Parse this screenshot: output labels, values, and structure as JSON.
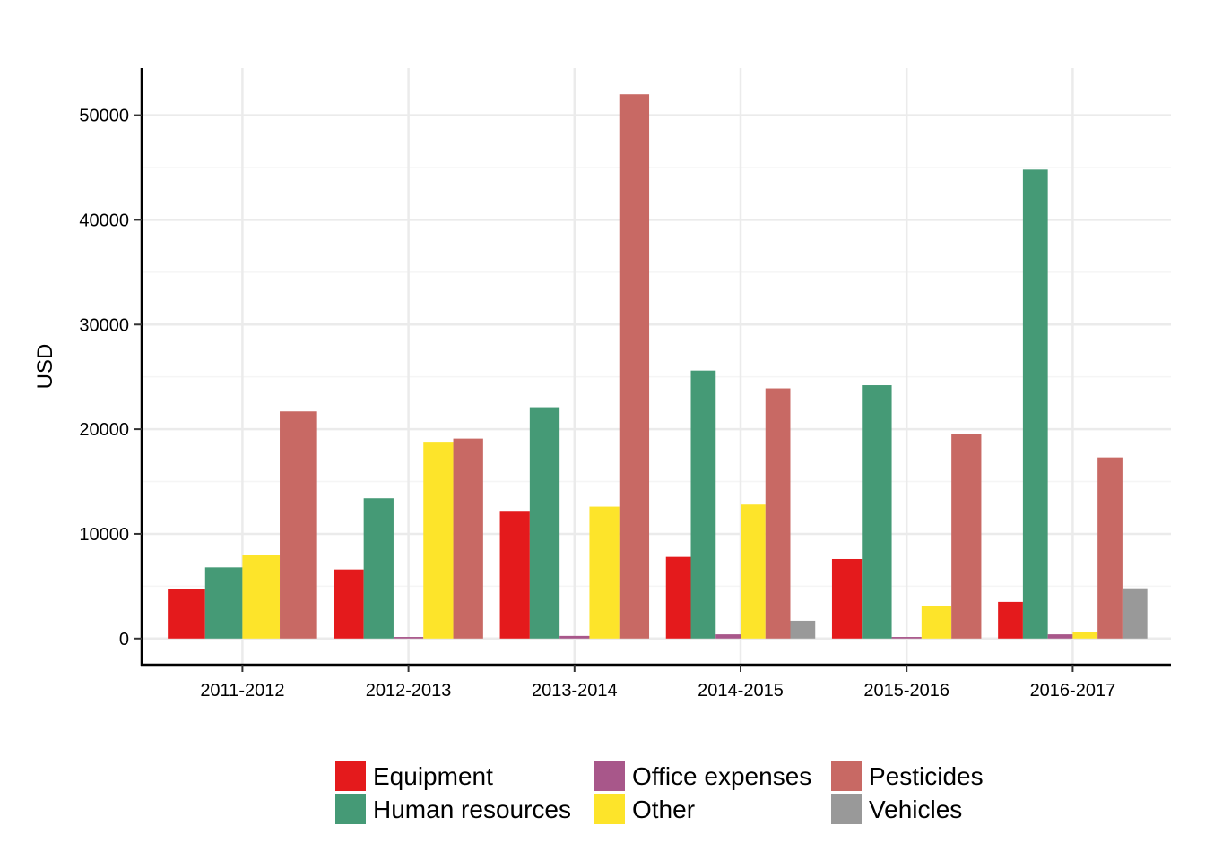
{
  "chart_data": {
    "type": "bar",
    "title": "",
    "xlabel": "",
    "ylabel": "USD",
    "ylim": [
      -2500,
      54500
    ],
    "y_ticks": [
      0,
      10000,
      20000,
      30000,
      40000,
      50000
    ],
    "grid": true,
    "legend_position": "bottom",
    "categories": [
      "2011-2012",
      "2012-2013",
      "2013-2014",
      "2014-2015",
      "2015-2016",
      "2016-2017"
    ],
    "series": [
      {
        "name": "Equipment",
        "color": "#e41a1c",
        "values": [
          4700,
          6600,
          12200,
          7800,
          7600,
          3500
        ]
      },
      {
        "name": "Human resources",
        "color": "#459a76",
        "values": [
          6800,
          13400,
          22100,
          25600,
          24200,
          44800
        ]
      },
      {
        "name": "Office expenses",
        "color": "#a8578a",
        "values": [
          null,
          150,
          250,
          400,
          150,
          400
        ]
      },
      {
        "name": "Other",
        "color": "#fde42a",
        "values": [
          8000,
          18800,
          12600,
          12800,
          3100,
          600
        ]
      },
      {
        "name": "Pesticides",
        "color": "#c86964",
        "values": [
          21700,
          19100,
          52000,
          23900,
          19500,
          17300
        ]
      },
      {
        "name": "Vehicles",
        "color": "#999999",
        "values": [
          null,
          null,
          null,
          1700,
          null,
          4800
        ]
      }
    ]
  }
}
